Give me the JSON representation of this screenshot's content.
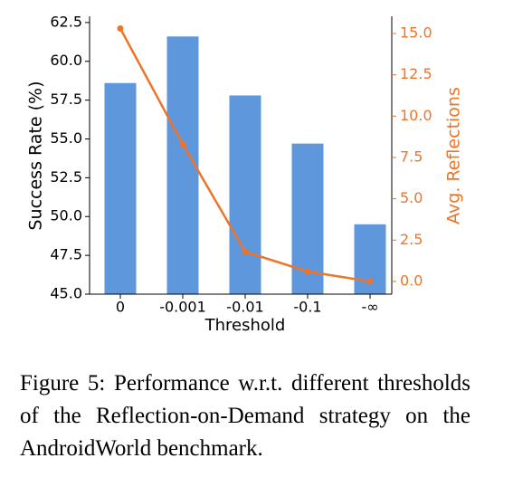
{
  "chart_data": {
    "type": "bar",
    "categories": [
      "0",
      "-0.001",
      "-0.01",
      "-0.1",
      "-∞"
    ],
    "xlabel": "Threshold",
    "ylabel": "Success Rate (%)",
    "y2label": "Avg. Reflections",
    "ylim": [
      45,
      62.9
    ],
    "yticks": [
      {
        "value": 45,
        "label": "45.0"
      },
      47.5,
      {
        "value": 50,
        "label": "50.0"
      },
      52.5,
      {
        "value": 55,
        "label": "55.0"
      },
      57.5,
      {
        "value": 60,
        "label": "60.0"
      },
      62.5
    ],
    "y2lim": [
      -0.77,
      16.04
    ],
    "y2ticks": [
      {
        "value": 0,
        "label": "0.0"
      },
      2.5,
      {
        "value": 5,
        "label": "5.0"
      },
      7.5,
      {
        "value": 10,
        "label": "10.0"
      },
      12.5,
      {
        "value": 15,
        "label": "15.0"
      }
    ],
    "series": [
      {
        "type": "bar",
        "color": "#5f97dc",
        "values": [
          58.6,
          61.6,
          57.8,
          54.7,
          49.5
        ]
      },
      {
        "type": "line",
        "color": "#ed7428",
        "axis": "y2",
        "values": [
          15.3,
          8.3,
          1.8,
          0.6,
          0.0
        ]
      }
    ],
    "caption": "Figure 5: Performance w.r.t. different thresholds of the Reflection-on-Demand strategy on the AndroidWorld benchmark."
  }
}
